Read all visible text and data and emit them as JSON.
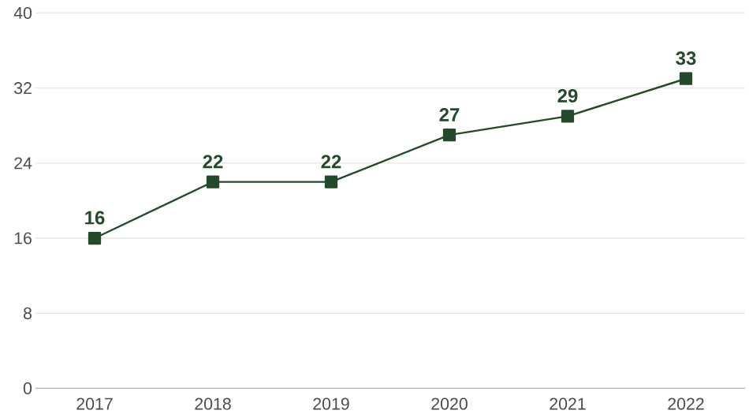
{
  "chart_data": {
    "type": "line",
    "categories": [
      "2017",
      "2018",
      "2019",
      "2020",
      "2021",
      "2022"
    ],
    "values": [
      16,
      22,
      22,
      27,
      29,
      33
    ],
    "color": "#244a2b",
    "ylim": [
      0,
      40
    ],
    "yticks": [
      0,
      8,
      16,
      24,
      32,
      40
    ],
    "grid": "y",
    "marker": "square",
    "line_style": "solid",
    "data_labels": true
  }
}
